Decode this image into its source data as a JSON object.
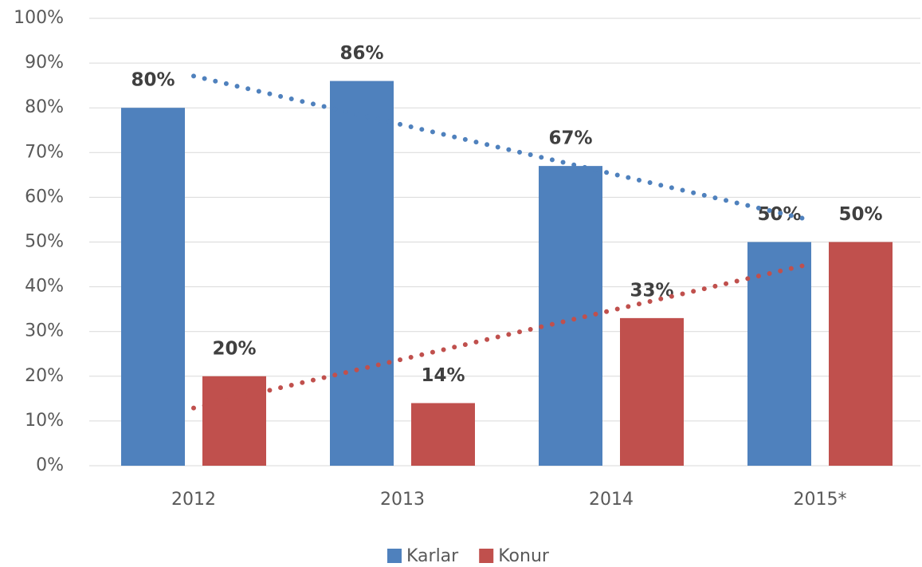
{
  "chart_data": {
    "type": "bar",
    "categories": [
      "2012",
      "2013",
      "2014",
      "2015*"
    ],
    "series": [
      {
        "name": "Karlar",
        "color": "#4f81bd",
        "values": [
          80,
          86,
          67,
          50
        ],
        "value_labels": [
          "80%",
          "86%",
          "67%",
          "50%"
        ],
        "trendline": true
      },
      {
        "name": "Konur",
        "color": "#c0504d",
        "values": [
          20,
          14,
          33,
          50
        ],
        "value_labels": [
          "20%",
          "14%",
          "33%",
          "50%"
        ],
        "trendline": true
      }
    ],
    "ylim": [
      0,
      100
    ],
    "yticks": [
      {
        "value": 0,
        "label": "0%"
      },
      {
        "value": 10,
        "label": "10%"
      },
      {
        "value": 20,
        "label": "20%"
      },
      {
        "value": 30,
        "label": "30%"
      },
      {
        "value": 40,
        "label": "40%"
      },
      {
        "value": 50,
        "label": "50%"
      },
      {
        "value": 60,
        "label": "60%"
      },
      {
        "value": 70,
        "label": "70%"
      },
      {
        "value": 80,
        "label": "80%"
      },
      {
        "value": 90,
        "label": "90%"
      },
      {
        "value": 100,
        "label": "100%"
      }
    ],
    "grid": true,
    "legend": "bottom"
  }
}
